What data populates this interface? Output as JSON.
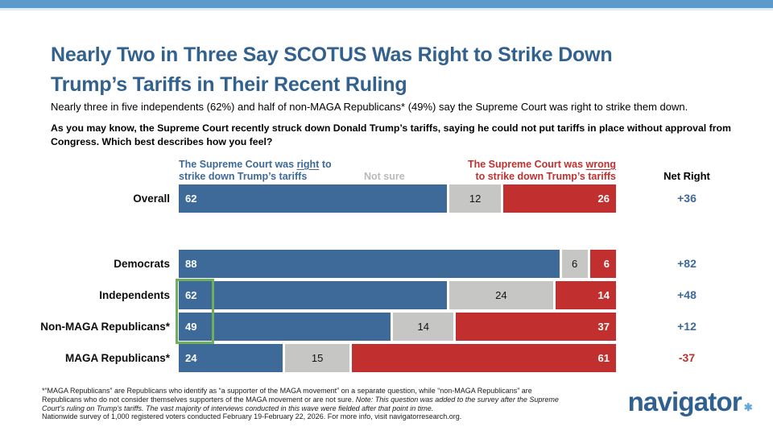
{
  "header": {
    "title": "Nearly Two in Three Say SCOTUS Was Right to Strike Down\nTrump’s Tariffs in Their Recent Ruling",
    "subtitle": "Nearly three in five independents (62%) and half of non-MAGA Republicans* (49%) say the Supreme Court was right to strike them down.",
    "question": "As you may know, the Supreme Court recently struck down Donald Trump’s tariffs, saying he could not put tariffs in place without approval from Congress. Which best describes how you feel?"
  },
  "legend": {
    "right_prefix": "The Supreme Court was ",
    "right_underlined": "right",
    "right_suffix": " to\nstrike down Trump’s tariffs",
    "not_sure": "Not sure",
    "wrong_prefix": "The Supreme Court was ",
    "wrong_underlined": "wrong",
    "wrong_suffix": "\nto strike down Trump’s tariffs",
    "net_header": "Net Right"
  },
  "chart_data": {
    "type": "bar",
    "subtype": "stacked-horizontal",
    "axis_range": [
      0,
      100
    ],
    "categories": [
      "Overall",
      "Democrats",
      "Independents",
      "Non-MAGA Republicans*",
      "MAGA Republicans*"
    ],
    "series": [
      {
        "name": "The Supreme Court was right to strike down Trump’s tariffs",
        "color": "#3d6a98",
        "values": [
          62,
          88,
          62,
          49,
          24
        ]
      },
      {
        "name": "Not sure",
        "color": "#c6c6c4",
        "values": [
          12,
          6,
          24,
          14,
          15
        ]
      },
      {
        "name": "The Supreme Court was wrong to strike down Trump’s tariffs",
        "color": "#c1302f",
        "values": [
          26,
          6,
          14,
          37,
          61
        ]
      }
    ],
    "net_label": "Net Right",
    "net_values": [
      "+36",
      "+82",
      "+48",
      "+12",
      "-37"
    ],
    "net_positive_color": "#3d6a98",
    "net_negative_color": "#c1302f",
    "highlighted_categories": [
      "Independents",
      "Non-MAGA Republicans*"
    ],
    "highlight_color": "#6fae5a",
    "legend_position": "top",
    "grid": false
  },
  "footnote": {
    "part_normal": "*“MAGA Republicans” are Republicans who identify as “a supporter of the MAGA movement” on a separate question, while “non-MAGA Republicans” are Republicans who do not consider themselves supporters of the MAGA movement or are not sure. ",
    "part_italic": "Note: This question was added to the survey after the Supreme Court’s ruling on Trump’s tariffs. The vast majority of interviews conducted in this wave were fielded after that point in time.",
    "part_survey": "Nationwide survey of 1,000 registered voters conducted February 19-February 22, 2026. For more info, visit navigatorresearch.org."
  },
  "logo": {
    "text": "navigator",
    "mark": "✱"
  }
}
